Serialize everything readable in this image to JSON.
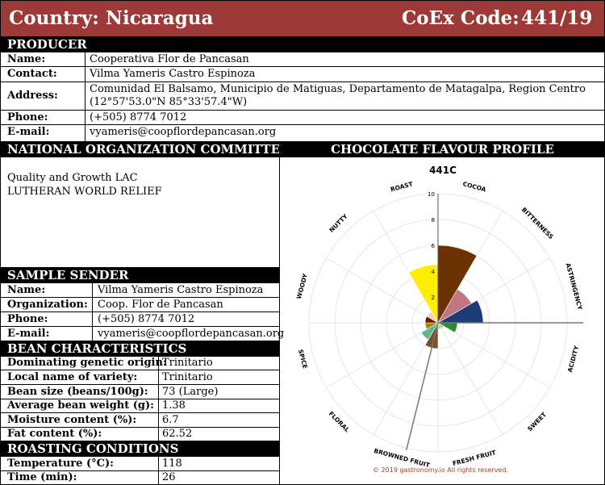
{
  "header": {
    "country_label": "Country:",
    "country_value": "Nicaragua",
    "coex_label": "CoEx Code:",
    "coex_value": "441/19"
  },
  "producer": {
    "title": "PRODUCER",
    "name_label": "Name:",
    "name_value": "Cooperativa Flor de Pancasan",
    "contact_label": "Contact:",
    "contact_value": "Vilma Yameris Castro Espinoza",
    "address_label": "Address:",
    "address_line1": "Comunidad El Balsamo, Municipio de Matiguas, Departamento de Matagalpa, Region Centro",
    "address_line2": "(12°57'53.0\"N 85°33'57.4\"W)",
    "phone_label": "Phone:",
    "phone_value": "(+505) 8774 7012",
    "email_label": "E-mail:",
    "email_value": "vyameris@coopflordepancasan.org"
  },
  "committee": {
    "title": "NATIONAL ORGANIZATION COMMITTEE",
    "line1": "Quality and Growth LAC",
    "line2": "LUTHERAN WORLD RELIEF"
  },
  "sender": {
    "title": "SAMPLE SENDER",
    "name_label": "Name:",
    "name_value": "Vilma Yameris Castro Espinoza",
    "org_label": "Organization:",
    "org_value": "Coop. Flor de Pancasan",
    "phone_label": "Phone:",
    "phone_value": "(+505) 8774 7012",
    "email_label": "E-mail:",
    "email_value": "vyameris@coopflordepancasan.org"
  },
  "bean": {
    "title": "BEAN CHARACTERISTICS",
    "rows": [
      {
        "label": "Dominating genetic origin:",
        "value": "Trinitario"
      },
      {
        "label": "Local name of variety:",
        "value": "Trinitario"
      },
      {
        "label": "Bean size (beans/100g):",
        "value": "73 (Large)"
      },
      {
        "label": "Average bean weight (g):",
        "value": "1.38"
      },
      {
        "label": "Moisture content (%):",
        "value": "6.7"
      },
      {
        "label": "Fat content (%):",
        "value": "62.52"
      }
    ]
  },
  "roasting": {
    "title": "ROASTING CONDITIONS",
    "rows": [
      {
        "label": "Temperature (°C):",
        "value": "118"
      },
      {
        "label": "Time (min):",
        "value": "26"
      }
    ]
  },
  "flavour": {
    "title": "CHOCOLATE FLAVOUR PROFILE",
    "copyright": "© 2019 gastronomy.io All rights reserved."
  },
  "chart_data": {
    "type": "polar-bar",
    "title": "441C",
    "rmax": 10,
    "ticks": [
      2,
      4,
      6,
      8,
      10
    ],
    "categories": [
      "COCOA",
      "BITTERNESS",
      "ASTRINGENCY",
      "ACIDITY",
      "SWEET",
      "FRESH FRUIT",
      "BROWNED FRUIT",
      "FLORAL",
      "SPICE",
      "WOODY",
      "NUTTY",
      "ROAST"
    ],
    "values": [
      6,
      3,
      3.5,
      1.5,
      0.5,
      0.5,
      2,
      1.5,
      1,
      1,
      1,
      4.5
    ],
    "colors": [
      "#6b3304",
      "#c07880",
      "#1c3c78",
      "#2b8a2b",
      "#c8c800",
      "#78c8e8",
      "#7a4e2e",
      "#5fb88a",
      "#9c8a00",
      "#6b1608",
      "#e8d2c0",
      "#ffee00"
    ],
    "grid": true
  }
}
